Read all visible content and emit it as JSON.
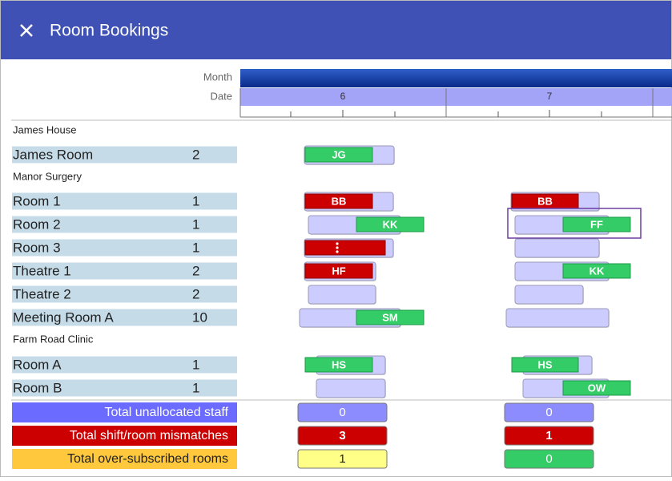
{
  "header": {
    "title": "Room Bookings"
  },
  "timeline": {
    "month_label": "Month",
    "date_label": "Date",
    "dates": [
      "6",
      "7"
    ]
  },
  "groups": [
    {
      "name": "James House",
      "rooms": [
        {
          "name": "James Room",
          "capacity": 2,
          "bookings": [
            "JG",
            null
          ]
        }
      ]
    },
    {
      "name": "Manor Surgery",
      "rooms": [
        {
          "name": "Room 1",
          "capacity": 1,
          "bookings": [
            "BB",
            "BB"
          ]
        },
        {
          "name": "Room 2",
          "capacity": 1,
          "bookings": [
            "KK",
            "FF"
          ]
        },
        {
          "name": "Room 3",
          "capacity": 1,
          "bookings": [
            null,
            null
          ]
        },
        {
          "name": "Theatre 1",
          "capacity": 2,
          "bookings": [
            "HF",
            "KK"
          ]
        },
        {
          "name": "Theatre 2",
          "capacity": 2,
          "bookings": [
            null,
            null
          ]
        },
        {
          "name": "Meeting Room A",
          "capacity": 10,
          "bookings": [
            "SM",
            null
          ]
        }
      ]
    },
    {
      "name": "Farm Road Clinic",
      "rooms": [
        {
          "name": "Room A",
          "capacity": 1,
          "bookings": [
            "HS",
            "HS"
          ]
        },
        {
          "name": "Room B",
          "capacity": 1,
          "bookings": [
            null,
            "OW"
          ]
        }
      ]
    }
  ],
  "totals": [
    {
      "label": "Total unallocated staff",
      "values": [
        0,
        0
      ]
    },
    {
      "label": "Total shift/room mismatches",
      "values": [
        3,
        1
      ]
    },
    {
      "label": "Total over-subscribed rooms",
      "values": [
        1,
        0
      ]
    }
  ]
}
